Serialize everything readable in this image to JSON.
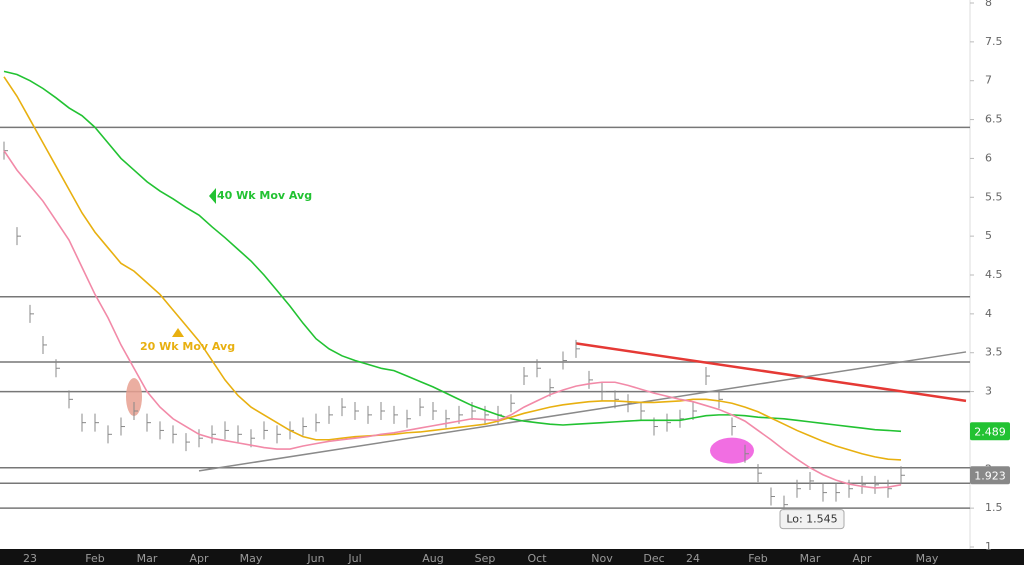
{
  "chart_data": {
    "type": "line",
    "categories": [
      null,
      null,
      "23",
      null,
      null,
      null,
      null,
      "Feb",
      null,
      null,
      null,
      "Mar",
      null,
      null,
      null,
      "Apr",
      null,
      null,
      null,
      "May",
      null,
      null,
      null,
      null,
      "Jun",
      null,
      null,
      "Jul",
      null,
      null,
      null,
      null,
      null,
      "Aug",
      null,
      null,
      null,
      "Sep",
      null,
      null,
      null,
      "Oct",
      null,
      null,
      null,
      null,
      "Nov",
      null,
      null,
      null,
      "Dec",
      null,
      null,
      "24",
      null,
      null,
      null,
      null,
      "Feb",
      null,
      null,
      null,
      "Mar",
      null,
      null,
      null,
      "Apr",
      null,
      null,
      null,
      null,
      "May",
      null,
      null,
      null
    ],
    "series": [
      {
        "color": "#888888",
        "style": "bars",
        "values": [
          6.1,
          5.0,
          4.0,
          3.6,
          3.3,
          2.9,
          2.6,
          2.6,
          2.45,
          2.55,
          2.75,
          2.6,
          2.5,
          2.45,
          2.35,
          2.4,
          2.45,
          2.5,
          2.45,
          2.4,
          2.5,
          2.45,
          2.5,
          2.55,
          2.6,
          2.7,
          2.8,
          2.75,
          2.7,
          2.75,
          2.7,
          2.65,
          2.8,
          2.75,
          2.65,
          2.7,
          2.75,
          2.7,
          2.7,
          2.85,
          3.2,
          3.3,
          3.05,
          3.4,
          3.55,
          3.15,
          3.0,
          2.9,
          2.85,
          2.75,
          2.55,
          2.6,
          2.65,
          2.75,
          3.2,
          2.9,
          2.55,
          2.2,
          1.95,
          1.65,
          1.545,
          1.75,
          1.85,
          1.7,
          1.7,
          1.75,
          1.8,
          1.8,
          1.75,
          1.923,
          null,
          null,
          null,
          null,
          null
        ]
      },
      {
        "name": "40 Wk Mov Avg",
        "color": "#22c232",
        "values": [
          7.12,
          7.08,
          7.0,
          6.9,
          6.78,
          6.65,
          6.55,
          6.4,
          6.2,
          6.0,
          5.85,
          5.7,
          5.58,
          5.48,
          5.37,
          5.27,
          5.12,
          4.98,
          4.83,
          4.68,
          4.5,
          4.3,
          4.1,
          3.88,
          3.68,
          3.55,
          3.46,
          3.4,
          3.35,
          3.3,
          3.27,
          3.2,
          3.13,
          3.06,
          2.98,
          2.9,
          2.82,
          2.76,
          2.7,
          2.65,
          2.62,
          2.6,
          2.58,
          2.57,
          2.58,
          2.59,
          2.6,
          2.61,
          2.62,
          2.63,
          2.63,
          2.63,
          2.63,
          2.66,
          2.69,
          2.7,
          2.7,
          2.69,
          2.67,
          2.66,
          2.65,
          2.63,
          2.61,
          2.59,
          2.57,
          2.55,
          2.53,
          2.51,
          2.5,
          2.489,
          null,
          null,
          null,
          null,
          null
        ]
      },
      {
        "name": "20 Wk Mov Avg",
        "color": "#e8b010",
        "values": [
          7.05,
          6.8,
          6.5,
          6.2,
          5.9,
          5.6,
          5.3,
          5.05,
          4.85,
          4.65,
          4.55,
          4.4,
          4.25,
          4.05,
          3.85,
          3.65,
          3.4,
          3.15,
          2.95,
          2.8,
          2.7,
          2.6,
          2.5,
          2.42,
          2.38,
          2.38,
          2.4,
          2.42,
          2.43,
          2.44,
          2.45,
          2.47,
          2.48,
          2.5,
          2.52,
          2.54,
          2.56,
          2.58,
          2.62,
          2.67,
          2.72,
          2.76,
          2.8,
          2.83,
          2.85,
          2.87,
          2.88,
          2.88,
          2.87,
          2.86,
          2.86,
          2.87,
          2.88,
          2.9,
          2.9,
          2.88,
          2.85,
          2.8,
          2.74,
          2.66,
          2.58,
          2.5,
          2.43,
          2.36,
          2.3,
          2.25,
          2.2,
          2.16,
          2.13,
          2.12,
          null,
          null,
          null,
          null,
          null
        ]
      },
      {
        "color": "#f28aa8",
        "values": [
          6.1,
          5.85,
          5.65,
          5.45,
          5.2,
          4.95,
          4.6,
          4.25,
          3.95,
          3.6,
          3.3,
          3.0,
          2.8,
          2.65,
          2.55,
          2.45,
          2.4,
          2.37,
          2.34,
          2.31,
          2.28,
          2.26,
          2.26,
          2.3,
          2.33,
          2.36,
          2.38,
          2.4,
          2.42,
          2.45,
          2.47,
          2.5,
          2.53,
          2.56,
          2.59,
          2.62,
          2.65,
          2.64,
          2.63,
          2.7,
          2.8,
          2.88,
          2.96,
          3.02,
          3.07,
          3.1,
          3.12,
          3.12,
          3.08,
          3.03,
          2.98,
          2.94,
          2.9,
          2.87,
          2.82,
          2.77,
          2.7,
          2.62,
          2.5,
          2.38,
          2.25,
          2.13,
          2.02,
          1.93,
          1.86,
          1.81,
          1.78,
          1.76,
          1.77,
          1.8,
          null,
          null,
          null,
          null,
          null
        ]
      }
    ],
    "ylim": [
      1,
      8
    ],
    "yticks": [
      1,
      1.5,
      2,
      2.5,
      3,
      3.5,
      4,
      4.5,
      5,
      5.5,
      6,
      6.5,
      7,
      7.5,
      8
    ],
    "grid": false,
    "levels": [
      6.4,
      4.22,
      3.38,
      3.0,
      2.02,
      1.82,
      1.5
    ],
    "trendlines": [
      {
        "color": "#e53935",
        "start": [
          44,
          3.62
        ],
        "end": [
          74,
          2.88
        ]
      },
      {
        "color": "#8a8a8a",
        "start": [
          15,
          1.98
        ],
        "end": [
          74,
          3.51
        ]
      }
    ],
    "highlights": [
      {
        "index": 10,
        "value": 2.93,
        "color": "#e8a090"
      },
      {
        "index": 56,
        "value": 2.24,
        "color": "#ee55dd"
      }
    ],
    "low": {
      "value": 1.545,
      "label": "Lo: 1.545"
    }
  }
}
